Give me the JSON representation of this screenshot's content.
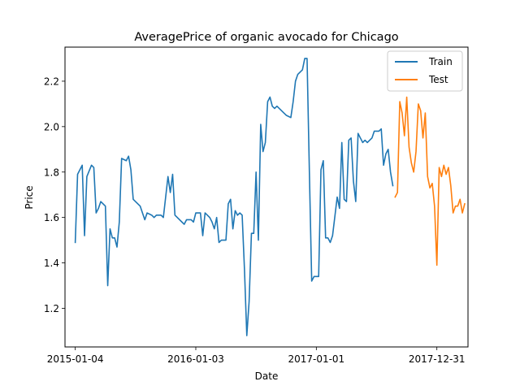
{
  "chart_data": {
    "type": "line",
    "title": "AveragePrice of organic avocado for Chicago",
    "xlabel": "Date",
    "ylabel": "Price",
    "x_type": "date",
    "xlim": [
      "2014-12-04",
      "2018-04-04"
    ],
    "ylim": [
      1.03,
      2.35
    ],
    "x_ticks": [
      "2015-01-04",
      "2016-01-03",
      "2017-01-01",
      "2017-12-31"
    ],
    "y_ticks": [
      1.2,
      1.4,
      1.6,
      1.8,
      2.0,
      2.2
    ],
    "y_tick_labels": [
      "1.2",
      "1.4",
      "1.6",
      "1.8",
      "2.0",
      "2.2"
    ],
    "grid": false,
    "legend": "top-right",
    "series": [
      {
        "name": "Train",
        "color": "#1f77b4",
        "points": [
          [
            "2015-01-04",
            1.49
          ],
          [
            "2015-01-11",
            1.79
          ],
          [
            "2015-01-25",
            1.83
          ],
          [
            "2015-02-01",
            1.52
          ],
          [
            "2015-02-08",
            1.78
          ],
          [
            "2015-02-22",
            1.83
          ],
          [
            "2015-03-01",
            1.82
          ],
          [
            "2015-03-08",
            1.62
          ],
          [
            "2015-03-15",
            1.64
          ],
          [
            "2015-03-22",
            1.67
          ],
          [
            "2015-04-05",
            1.65
          ],
          [
            "2015-04-12",
            1.3
          ],
          [
            "2015-04-19",
            1.55
          ],
          [
            "2015-04-26",
            1.51
          ],
          [
            "2015-05-03",
            1.51
          ],
          [
            "2015-05-10",
            1.47
          ],
          [
            "2015-05-17",
            1.58
          ],
          [
            "2015-05-24",
            1.86
          ],
          [
            "2015-06-07",
            1.85
          ],
          [
            "2015-06-14",
            1.87
          ],
          [
            "2015-06-21",
            1.81
          ],
          [
            "2015-06-28",
            1.68
          ],
          [
            "2015-07-19",
            1.65
          ],
          [
            "2015-08-02",
            1.59
          ],
          [
            "2015-08-09",
            1.62
          ],
          [
            "2015-08-23",
            1.61
          ],
          [
            "2015-08-30",
            1.6
          ],
          [
            "2015-09-06",
            1.61
          ],
          [
            "2015-09-20",
            1.61
          ],
          [
            "2015-09-27",
            1.6
          ],
          [
            "2015-10-11",
            1.78
          ],
          [
            "2015-10-18",
            1.71
          ],
          [
            "2015-10-25",
            1.79
          ],
          [
            "2015-11-01",
            1.61
          ],
          [
            "2015-11-22",
            1.58
          ],
          [
            "2015-11-29",
            1.57
          ],
          [
            "2015-12-06",
            1.59
          ],
          [
            "2015-12-20",
            1.59
          ],
          [
            "2015-12-27",
            1.58
          ],
          [
            "2016-01-03",
            1.62
          ],
          [
            "2016-01-17",
            1.62
          ],
          [
            "2016-01-24",
            1.52
          ],
          [
            "2016-01-31",
            1.62
          ],
          [
            "2016-02-14",
            1.6
          ],
          [
            "2016-02-21",
            1.58
          ],
          [
            "2016-02-28",
            1.55
          ],
          [
            "2016-03-06",
            1.6
          ],
          [
            "2016-03-13",
            1.49
          ],
          [
            "2016-03-20",
            1.5
          ],
          [
            "2016-04-03",
            1.5
          ],
          [
            "2016-04-10",
            1.66
          ],
          [
            "2016-04-17",
            1.68
          ],
          [
            "2016-04-24",
            1.55
          ],
          [
            "2016-05-01",
            1.63
          ],
          [
            "2016-05-08",
            1.61
          ],
          [
            "2016-05-15",
            1.62
          ],
          [
            "2016-05-22",
            1.61
          ],
          [
            "2016-05-29",
            1.37
          ],
          [
            "2016-06-05",
            1.08
          ],
          [
            "2016-06-12",
            1.23
          ],
          [
            "2016-06-19",
            1.53
          ],
          [
            "2016-06-26",
            1.53
          ],
          [
            "2016-07-03",
            1.8
          ],
          [
            "2016-07-10",
            1.5
          ],
          [
            "2016-07-17",
            2.01
          ],
          [
            "2016-07-24",
            1.89
          ],
          [
            "2016-07-31",
            1.93
          ],
          [
            "2016-08-07",
            2.11
          ],
          [
            "2016-08-14",
            2.13
          ],
          [
            "2016-08-21",
            2.09
          ],
          [
            "2016-08-28",
            2.08
          ],
          [
            "2016-09-04",
            2.09
          ],
          [
            "2016-09-25",
            2.06
          ],
          [
            "2016-10-02",
            2.05
          ],
          [
            "2016-10-16",
            2.04
          ],
          [
            "2016-10-23",
            2.11
          ],
          [
            "2016-10-30",
            2.2
          ],
          [
            "2016-11-06",
            2.23
          ],
          [
            "2016-11-20",
            2.25
          ],
          [
            "2016-11-27",
            2.3
          ],
          [
            "2016-12-04",
            2.3
          ],
          [
            "2016-12-11",
            1.8
          ],
          [
            "2016-12-18",
            1.32
          ],
          [
            "2016-12-25",
            1.34
          ],
          [
            "2017-01-08",
            1.34
          ],
          [
            "2017-01-15",
            1.81
          ],
          [
            "2017-01-22",
            1.85
          ],
          [
            "2017-01-29",
            1.51
          ],
          [
            "2017-02-05",
            1.51
          ],
          [
            "2017-02-12",
            1.49
          ],
          [
            "2017-02-19",
            1.52
          ],
          [
            "2017-03-05",
            1.69
          ],
          [
            "2017-03-12",
            1.64
          ],
          [
            "2017-03-19",
            1.93
          ],
          [
            "2017-03-26",
            1.68
          ],
          [
            "2017-04-02",
            1.67
          ],
          [
            "2017-04-09",
            1.94
          ],
          [
            "2017-04-16",
            1.95
          ],
          [
            "2017-04-23",
            1.76
          ],
          [
            "2017-04-30",
            1.67
          ],
          [
            "2017-05-07",
            1.97
          ],
          [
            "2017-05-14",
            1.95
          ],
          [
            "2017-05-21",
            1.93
          ],
          [
            "2017-05-28",
            1.94
          ],
          [
            "2017-06-04",
            1.93
          ],
          [
            "2017-06-18",
            1.95
          ],
          [
            "2017-06-25",
            1.98
          ],
          [
            "2017-07-09",
            1.98
          ],
          [
            "2017-07-16",
            1.99
          ],
          [
            "2017-07-23",
            1.83
          ],
          [
            "2017-07-30",
            1.88
          ],
          [
            "2017-08-06",
            1.9
          ],
          [
            "2017-08-13",
            1.8
          ],
          [
            "2017-08-20",
            1.74
          ]
        ]
      },
      {
        "name": "Test",
        "color": "#ff7f0e",
        "points": [
          [
            "2017-08-27",
            1.69
          ],
          [
            "2017-09-03",
            1.71
          ],
          [
            "2017-09-10",
            2.11
          ],
          [
            "2017-09-17",
            2.06
          ],
          [
            "2017-09-24",
            1.96
          ],
          [
            "2017-10-01",
            2.13
          ],
          [
            "2017-10-08",
            1.91
          ],
          [
            "2017-10-15",
            1.84
          ],
          [
            "2017-10-22",
            1.8
          ],
          [
            "2017-10-29",
            1.89
          ],
          [
            "2017-11-05",
            2.1
          ],
          [
            "2017-11-12",
            2.07
          ],
          [
            "2017-11-19",
            1.95
          ],
          [
            "2017-11-26",
            2.06
          ],
          [
            "2017-12-03",
            1.78
          ],
          [
            "2017-12-10",
            1.73
          ],
          [
            "2017-12-17",
            1.75
          ],
          [
            "2017-12-24",
            1.65
          ],
          [
            "2017-12-31",
            1.39
          ],
          [
            "2018-01-07",
            1.82
          ],
          [
            "2018-01-14",
            1.78
          ],
          [
            "2018-01-21",
            1.83
          ],
          [
            "2018-01-28",
            1.79
          ],
          [
            "2018-02-04",
            1.82
          ],
          [
            "2018-02-11",
            1.74
          ],
          [
            "2018-02-18",
            1.62
          ],
          [
            "2018-02-25",
            1.65
          ],
          [
            "2018-03-04",
            1.65
          ],
          [
            "2018-03-11",
            1.68
          ],
          [
            "2018-03-18",
            1.62
          ],
          [
            "2018-03-25",
            1.66
          ]
        ]
      }
    ]
  }
}
